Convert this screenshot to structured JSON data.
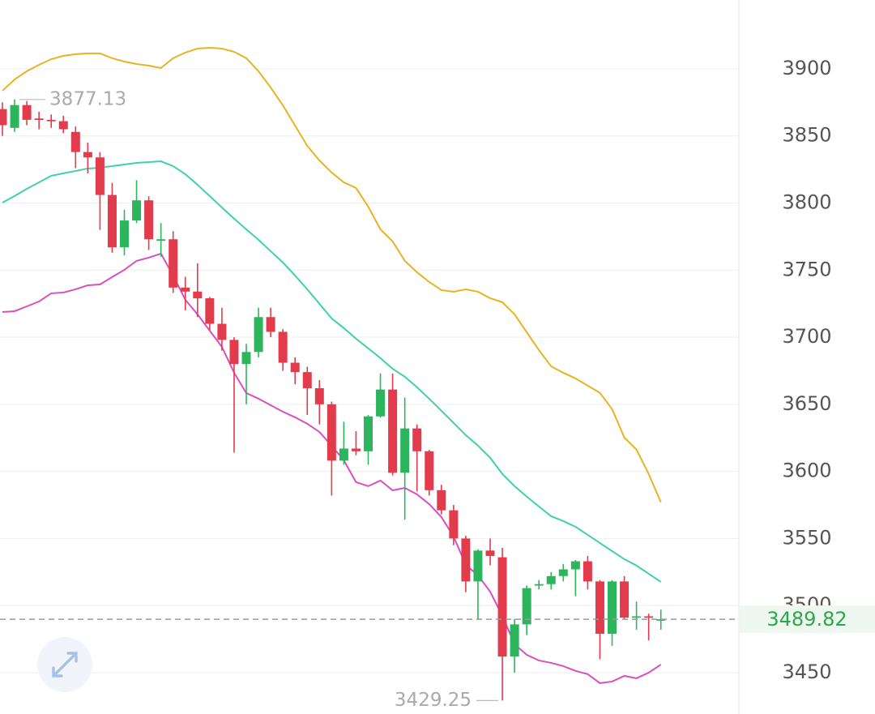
{
  "chart_data": {
    "type": "candlestick",
    "ylim": [
      3419.2,
      3951.3
    ],
    "yticks": [
      3450,
      3500,
      3550,
      3600,
      3650,
      3700,
      3750,
      3800,
      3850,
      3900
    ],
    "grid": true,
    "up_color": "#2db55d",
    "down_color": "#e23b4c",
    "open": [
      3870,
      3856,
      3873,
      3863,
      3862,
      3861,
      3853,
      3838,
      3834,
      3806,
      3767,
      3787,
      3802,
      3773,
      3773,
      3737,
      3734,
      3729,
      3710,
      3698,
      3680,
      3689,
      3715,
      3704,
      3681,
      3674,
      3662,
      3650,
      3608,
      3617,
      3615,
      3641,
      3661,
      3599,
      3632,
      3615,
      3586,
      3571,
      3550,
      3518,
      3541,
      3536,
      3462,
      3486,
      3515,
      3516,
      3522,
      3527,
      3533,
      3518,
      3479,
      3518,
      3491,
      3492,
      3489.5
    ],
    "high": [
      3875,
      3877.13,
      3876,
      3868,
      3866,
      3865,
      3857,
      3845,
      3838,
      3815,
      3795,
      3817,
      3805,
      3785,
      3779,
      3745,
      3755,
      3730,
      3722,
      3700,
      3695,
      3722,
      3722,
      3706,
      3685,
      3678,
      3668,
      3652,
      3637,
      3630,
      3642,
      3673,
      3673,
      3655,
      3635,
      3616,
      3590,
      3575,
      3552,
      3542,
      3550,
      3543,
      3490,
      3515,
      3519,
      3525,
      3531,
      3534,
      3537,
      3519,
      3519,
      3522,
      3503,
      3494,
      3497
    ],
    "low": [
      3850,
      3853,
      3858,
      3855,
      3856,
      3852,
      3826,
      3822,
      3780,
      3763,
      3761,
      3785,
      3765,
      3760,
      3733,
      3720,
      3715,
      3705,
      3690,
      3614,
      3650,
      3685,
      3700,
      3675,
      3665,
      3642,
      3635,
      3582,
      3605,
      3612,
      3605,
      3640,
      3597,
      3564,
      3585,
      3582,
      3568,
      3545,
      3510,
      3490,
      3530,
      3429.25,
      3450,
      3478,
      3512,
      3512,
      3518,
      3507,
      3512,
      3460,
      3470,
      3490,
      3482,
      3474,
      3482
    ],
    "close": [
      3858,
      3873,
      3862,
      3862,
      3861,
      3855,
      3838,
      3834,
      3806,
      3767,
      3787,
      3802,
      3773,
      3773,
      3737,
      3734,
      3729,
      3710,
      3698,
      3680,
      3689,
      3715,
      3704,
      3681,
      3674,
      3662,
      3650,
      3608,
      3617,
      3615,
      3641,
      3661,
      3599,
      3632,
      3615,
      3586,
      3571,
      3550,
      3518,
      3541,
      3537,
      3462,
      3486,
      3513,
      3516,
      3522,
      3527,
      3533,
      3518,
      3479,
      3518,
      3491,
      3492,
      3491,
      3489.82
    ],
    "series": [
      {
        "color": "#e8b321",
        "values": [
          3883.7,
          3892.1,
          3898.2,
          3903.0,
          3907.2,
          3909.7,
          3910.9,
          3911.5,
          3911.5,
          3907.9,
          3905.4,
          3903.6,
          3902.4,
          3900.6,
          3907.9,
          3912.1,
          3915.1,
          3915.7,
          3915.1,
          3912.7,
          3907.9,
          3898.2,
          3886.1,
          3872.8,
          3857.7,
          3842.6,
          3831.7,
          3822.7,
          3815.4,
          3811.2,
          3797.3,
          3780.4,
          3771.4,
          3756.9,
          3748.4,
          3741.2,
          3735.1,
          3733.9,
          3735.7,
          3733.9,
          3729.1,
          3726.1,
          3717.0,
          3703.7,
          3690.4,
          3678.3,
          3673.5,
          3669.3,
          3663.9,
          3658.5,
          3646.4,
          3625.3,
          3616.2,
          3598.1,
          3577.0
        ]
      },
      {
        "color": "#3fd1a8",
        "values": [
          3800.3,
          3805.2,
          3810.6,
          3815.4,
          3820.3,
          3822.1,
          3823.9,
          3825.7,
          3826.3,
          3827.5,
          3828.7,
          3829.9,
          3830.5,
          3831.1,
          3827.5,
          3821.5,
          3813.6,
          3805.2,
          3796.7,
          3788.3,
          3780.4,
          3772.6,
          3764.1,
          3755.7,
          3746.0,
          3735.7,
          3724.9,
          3714.0,
          3706.8,
          3698.9,
          3691.7,
          3684.4,
          3676.5,
          3670.5,
          3662.7,
          3654.2,
          3645.2,
          3636.1,
          3627.0,
          3619.2,
          3610.2,
          3598.1,
          3589.0,
          3581.2,
          3573.8,
          3566.6,
          3563.0,
          3558.7,
          3552.7,
          3546.6,
          3540.6,
          3534.6,
          3529.8,
          3523.7,
          3517.7
        ]
      },
      {
        "color": "#d94fc0",
        "values": [
          3718.8,
          3719.4,
          3723.0,
          3726.6,
          3732.7,
          3733.3,
          3735.7,
          3738.7,
          3739.3,
          3744.8,
          3750.2,
          3756.9,
          3759.3,
          3762.3,
          3746.0,
          3727.9,
          3717.0,
          3704.9,
          3692.8,
          3673.5,
          3658.4,
          3654.2,
          3649.3,
          3644.5,
          3640.3,
          3635.5,
          3629.4,
          3619.1,
          3608.3,
          3592.0,
          3589.0,
          3593.2,
          3585.9,
          3587.7,
          3582.9,
          3575.6,
          3566.0,
          3551.5,
          3530.4,
          3522.5,
          3510.4,
          3492.3,
          3471.2,
          3463.3,
          3459.1,
          3457.3,
          3454.9,
          3451.3,
          3448.9,
          3442.2,
          3443.4,
          3447.6,
          3445.8,
          3450.0,
          3456.0
        ]
      }
    ],
    "high_label": 3877.13,
    "low_label": 3429.25,
    "last_price": 3489.82
  }
}
